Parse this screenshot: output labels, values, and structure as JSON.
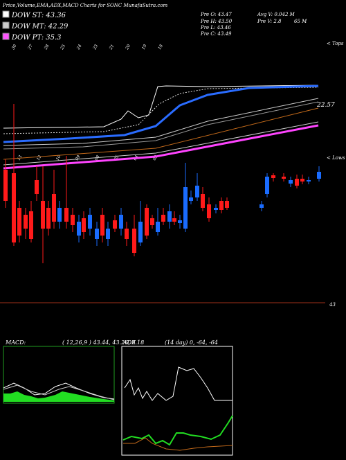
{
  "header": {
    "title": "Price,Volume,EMA,ADX,MACD Charts for SONC MunafaSutra.com"
  },
  "legend": [
    "DOW ST: 43.36",
    "DOW MT: 42.29",
    "DOW PT: 35.3"
  ],
  "stats": [
    "Pre  O: 43.47",
    "Pre  H: 43.50",
    "Pre  L: 43.46",
    "Pre  C: 43.49",
    "Avg  V: 0.042  M",
    "Pre  V: 2.8",
    "65  M"
  ],
  "labels": {
    "tops": "< Tops",
    "lows": "< Lows",
    "ema_value": "22.57",
    "price_line": "43"
  },
  "top_dates": [
    "30",
    "27",
    "28",
    "25",
    "24",
    "23",
    "21",
    "20",
    "19",
    "18"
  ],
  "low_dates": [
    "13",
    "12",
    "10",
    "09",
    "08",
    "05",
    "04",
    "03"
  ],
  "macd": {
    "title": "MACD:",
    "params": "( 12,26,9 ) 43.44, 43.26, 0.18"
  },
  "adx": {
    "title": "ADX",
    "params": "(14  day) 0, -64, -64"
  }
}
